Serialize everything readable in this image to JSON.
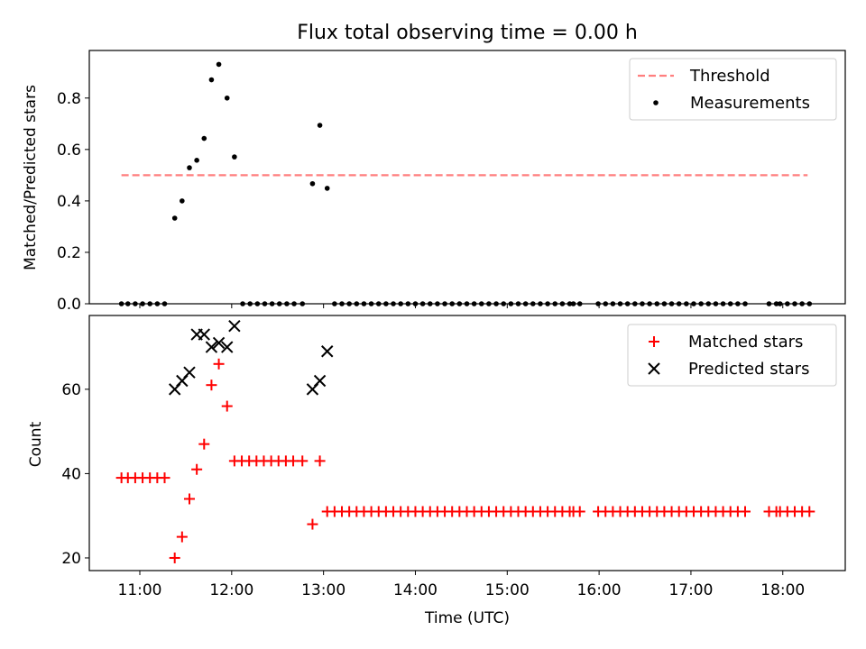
{
  "chart_data": [
    {
      "type": "scatter",
      "title": "Flux total observing time = 0.00 h",
      "xlabel": "",
      "ylabel": "Matched/Predicted stars",
      "xlim": [
        10.45,
        18.68
      ],
      "ylim": [
        0,
        0.985
      ],
      "y_ticks": [
        "0.0",
        "0.2",
        "0.4",
        "0.6",
        "0.8"
      ],
      "y_tick_values": [
        0,
        0.2,
        0.4,
        0.6,
        0.8
      ],
      "legend": {
        "position": "top-right",
        "entries": [
          "Threshold",
          "Measurements"
        ]
      },
      "threshold": {
        "name": "Threshold",
        "value": 0.5,
        "x_range": [
          10.8,
          18.27
        ],
        "color": "#ff7f7f"
      },
      "series": [
        {
          "name": "Measurements",
          "color": "#000000",
          "points": [
            [
              10.8,
              0
            ],
            [
              10.87,
              0
            ],
            [
              10.95,
              0
            ],
            [
              11.03,
              0
            ],
            [
              11.11,
              0
            ],
            [
              11.19,
              0
            ],
            [
              11.27,
              0
            ],
            [
              11.38,
              0.333
            ],
            [
              11.46,
              0.4
            ],
            [
              11.54,
              0.529
            ],
            [
              11.62,
              0.558
            ],
            [
              11.7,
              0.643
            ],
            [
              11.78,
              0.871
            ],
            [
              11.86,
              0.931
            ],
            [
              11.95,
              0.8
            ],
            [
              12.03,
              0.571
            ],
            [
              12.12,
              0
            ],
            [
              12.2,
              0
            ],
            [
              12.28,
              0
            ],
            [
              12.36,
              0
            ],
            [
              12.44,
              0
            ],
            [
              12.52,
              0
            ],
            [
              12.6,
              0
            ],
            [
              12.68,
              0
            ],
            [
              12.77,
              0
            ],
            [
              12.88,
              0.467
            ],
            [
              12.96,
              0.694
            ],
            [
              13.04,
              0.449
            ],
            [
              13.12,
              0
            ],
            [
              13.2,
              0
            ],
            [
              13.28,
              0
            ],
            [
              13.36,
              0
            ],
            [
              13.44,
              0
            ],
            [
              13.52,
              0
            ],
            [
              13.6,
              0
            ],
            [
              13.68,
              0
            ],
            [
              13.76,
              0
            ],
            [
              13.84,
              0
            ],
            [
              13.92,
              0
            ],
            [
              14.0,
              0
            ],
            [
              14.08,
              0
            ],
            [
              14.16,
              0
            ],
            [
              14.24,
              0
            ],
            [
              14.32,
              0
            ],
            [
              14.4,
              0
            ],
            [
              14.48,
              0
            ],
            [
              14.56,
              0
            ],
            [
              14.64,
              0
            ],
            [
              14.72,
              0
            ],
            [
              14.8,
              0
            ],
            [
              14.88,
              0
            ],
            [
              14.96,
              0
            ],
            [
              15.04,
              0
            ],
            [
              15.12,
              0
            ],
            [
              15.2,
              0
            ],
            [
              15.28,
              0
            ],
            [
              15.36,
              0
            ],
            [
              15.44,
              0
            ],
            [
              15.52,
              0
            ],
            [
              15.6,
              0
            ],
            [
              15.68,
              0
            ],
            [
              15.72,
              0
            ],
            [
              15.79,
              0
            ],
            [
              15.99,
              0
            ],
            [
              16.07,
              0
            ],
            [
              16.15,
              0
            ],
            [
              16.23,
              0
            ],
            [
              16.31,
              0
            ],
            [
              16.39,
              0
            ],
            [
              16.47,
              0
            ],
            [
              16.55,
              0
            ],
            [
              16.63,
              0
            ],
            [
              16.71,
              0
            ],
            [
              16.79,
              0
            ],
            [
              16.87,
              0
            ],
            [
              16.95,
              0
            ],
            [
              17.03,
              0
            ],
            [
              17.11,
              0
            ],
            [
              17.19,
              0
            ],
            [
              17.27,
              0
            ],
            [
              17.35,
              0
            ],
            [
              17.43,
              0
            ],
            [
              17.51,
              0
            ],
            [
              17.59,
              0
            ],
            [
              17.85,
              0
            ],
            [
              17.93,
              0
            ],
            [
              17.97,
              0
            ],
            [
              18.05,
              0
            ],
            [
              18.13,
              0
            ],
            [
              18.21,
              0
            ],
            [
              18.29,
              0
            ]
          ]
        }
      ]
    },
    {
      "type": "scatter",
      "title": "",
      "xlabel": "Time (UTC)",
      "ylabel": "Count",
      "xlim": [
        10.45,
        18.68
      ],
      "ylim": [
        17,
        77.5
      ],
      "x_ticks": [
        "11:00",
        "12:00",
        "13:00",
        "14:00",
        "15:00",
        "16:00",
        "17:00",
        "18:00"
      ],
      "x_tick_values": [
        11,
        12,
        13,
        14,
        15,
        16,
        17,
        18
      ],
      "y_ticks": [
        "20",
        "40",
        "60"
      ],
      "y_tick_values": [
        20,
        40,
        60
      ],
      "legend": {
        "position": "top-right",
        "entries": [
          "Matched stars",
          "Predicted stars"
        ]
      },
      "series": [
        {
          "name": "Matched stars",
          "marker": "plus",
          "color": "#ff0000",
          "points": [
            [
              10.8,
              39
            ],
            [
              10.87,
              39
            ],
            [
              10.95,
              39
            ],
            [
              11.03,
              39
            ],
            [
              11.11,
              39
            ],
            [
              11.19,
              39
            ],
            [
              11.27,
              39
            ],
            [
              11.38,
              20
            ],
            [
              11.46,
              25
            ],
            [
              11.54,
              34
            ],
            [
              11.62,
              41
            ],
            [
              11.7,
              47
            ],
            [
              11.78,
              61
            ],
            [
              11.86,
              66
            ],
            [
              11.95,
              56
            ],
            [
              12.03,
              43
            ],
            [
              12.11,
              43
            ],
            [
              12.19,
              43
            ],
            [
              12.27,
              43
            ],
            [
              12.35,
              43
            ],
            [
              12.43,
              43
            ],
            [
              12.51,
              43
            ],
            [
              12.59,
              43
            ],
            [
              12.67,
              43
            ],
            [
              12.77,
              43
            ],
            [
              12.88,
              28
            ],
            [
              12.96,
              43
            ],
            [
              13.04,
              31
            ],
            [
              13.12,
              31
            ],
            [
              13.2,
              31
            ],
            [
              13.28,
              31
            ],
            [
              13.36,
              31
            ],
            [
              13.44,
              31
            ],
            [
              13.52,
              31
            ],
            [
              13.6,
              31
            ],
            [
              13.68,
              31
            ],
            [
              13.76,
              31
            ],
            [
              13.84,
              31
            ],
            [
              13.92,
              31
            ],
            [
              14.0,
              31
            ],
            [
              14.08,
              31
            ],
            [
              14.16,
              31
            ],
            [
              14.24,
              31
            ],
            [
              14.32,
              31
            ],
            [
              14.4,
              31
            ],
            [
              14.48,
              31
            ],
            [
              14.56,
              31
            ],
            [
              14.64,
              31
            ],
            [
              14.72,
              31
            ],
            [
              14.8,
              31
            ],
            [
              14.88,
              31
            ],
            [
              14.96,
              31
            ],
            [
              15.04,
              31
            ],
            [
              15.12,
              31
            ],
            [
              15.2,
              31
            ],
            [
              15.28,
              31
            ],
            [
              15.36,
              31
            ],
            [
              15.44,
              31
            ],
            [
              15.52,
              31
            ],
            [
              15.6,
              31
            ],
            [
              15.68,
              31
            ],
            [
              15.72,
              31
            ],
            [
              15.79,
              31
            ],
            [
              15.99,
              31
            ],
            [
              16.07,
              31
            ],
            [
              16.15,
              31
            ],
            [
              16.23,
              31
            ],
            [
              16.31,
              31
            ],
            [
              16.39,
              31
            ],
            [
              16.47,
              31
            ],
            [
              16.55,
              31
            ],
            [
              16.63,
              31
            ],
            [
              16.71,
              31
            ],
            [
              16.79,
              31
            ],
            [
              16.87,
              31
            ],
            [
              16.95,
              31
            ],
            [
              17.03,
              31
            ],
            [
              17.11,
              31
            ],
            [
              17.19,
              31
            ],
            [
              17.27,
              31
            ],
            [
              17.35,
              31
            ],
            [
              17.43,
              31
            ],
            [
              17.51,
              31
            ],
            [
              17.59,
              31
            ],
            [
              17.85,
              31
            ],
            [
              17.93,
              31
            ],
            [
              17.97,
              31
            ],
            [
              18.05,
              31
            ],
            [
              18.13,
              31
            ],
            [
              18.21,
              31
            ],
            [
              18.29,
              31
            ]
          ]
        },
        {
          "name": "Predicted stars",
          "marker": "x",
          "color": "#000000",
          "points": [
            [
              11.38,
              60
            ],
            [
              11.46,
              62
            ],
            [
              11.54,
              64
            ],
            [
              11.62,
              73
            ],
            [
              11.7,
              73
            ],
            [
              11.78,
              70
            ],
            [
              11.86,
              71
            ],
            [
              11.95,
              70
            ],
            [
              12.03,
              75
            ],
            [
              12.88,
              60
            ],
            [
              12.96,
              62
            ],
            [
              13.04,
              69
            ]
          ]
        }
      ]
    }
  ]
}
